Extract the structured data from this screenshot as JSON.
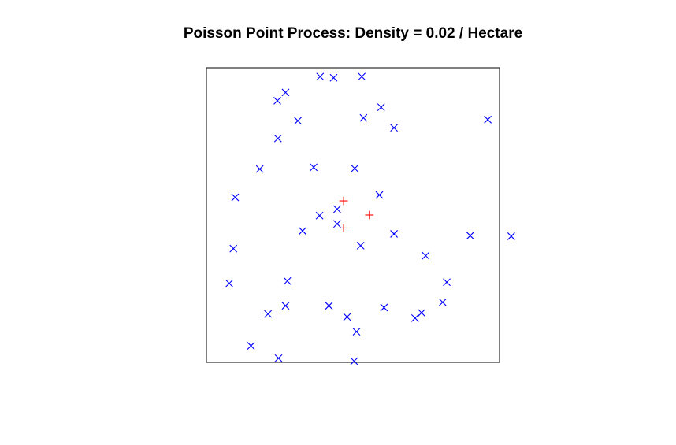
{
  "chart_data": {
    "type": "scatter",
    "title": "Poisson Point Process: Density = 0.02 / Hectare",
    "xlabel": "",
    "ylabel": "",
    "axes_visible": false,
    "frame": true,
    "xlim": [
      0,
      50
    ],
    "ylim": [
      0,
      50
    ],
    "grid": false,
    "series": [
      {
        "marker": "x",
        "color": "#0000ff",
        "points": [
          [
            19.4,
            48.5
          ],
          [
            21.7,
            48.3
          ],
          [
            26.5,
            48.5
          ],
          [
            12.1,
            44.4
          ],
          [
            13.5,
            45.8
          ],
          [
            15.6,
            41.0
          ],
          [
            26.8,
            41.5
          ],
          [
            29.8,
            43.3
          ],
          [
            32.0,
            39.8
          ],
          [
            12.2,
            38.0
          ],
          [
            48.0,
            41.2
          ],
          [
            9.1,
            32.8
          ],
          [
            18.3,
            33.1
          ],
          [
            25.3,
            32.9
          ],
          [
            4.9,
            28.0
          ],
          [
            29.5,
            28.4
          ],
          [
            22.3,
            26.0
          ],
          [
            19.3,
            24.9
          ],
          [
            22.3,
            23.5
          ],
          [
            16.4,
            22.3
          ],
          [
            32.0,
            21.8
          ],
          [
            52.0,
            21.4
          ],
          [
            26.3,
            19.8
          ],
          [
            37.4,
            18.1
          ],
          [
            45.0,
            21.5
          ],
          [
            4.6,
            19.3
          ],
          [
            41.0,
            13.6
          ],
          [
            13.8,
            13.8
          ],
          [
            3.9,
            13.4
          ],
          [
            20.9,
            9.6
          ],
          [
            13.5,
            9.6
          ],
          [
            30.3,
            9.3
          ],
          [
            10.5,
            8.2
          ],
          [
            40.3,
            10.2
          ],
          [
            35.6,
            7.5
          ],
          [
            36.7,
            8.4
          ],
          [
            24.0,
            7.7
          ],
          [
            25.6,
            5.2
          ],
          [
            7.6,
            2.8
          ],
          [
            12.3,
            0.7
          ],
          [
            25.2,
            0.2
          ]
        ]
      },
      {
        "marker": "+",
        "color": "#ff0000",
        "points": [
          [
            23.4,
            27.4
          ],
          [
            27.8,
            25.0
          ],
          [
            23.4,
            22.8
          ]
        ]
      }
    ]
  }
}
